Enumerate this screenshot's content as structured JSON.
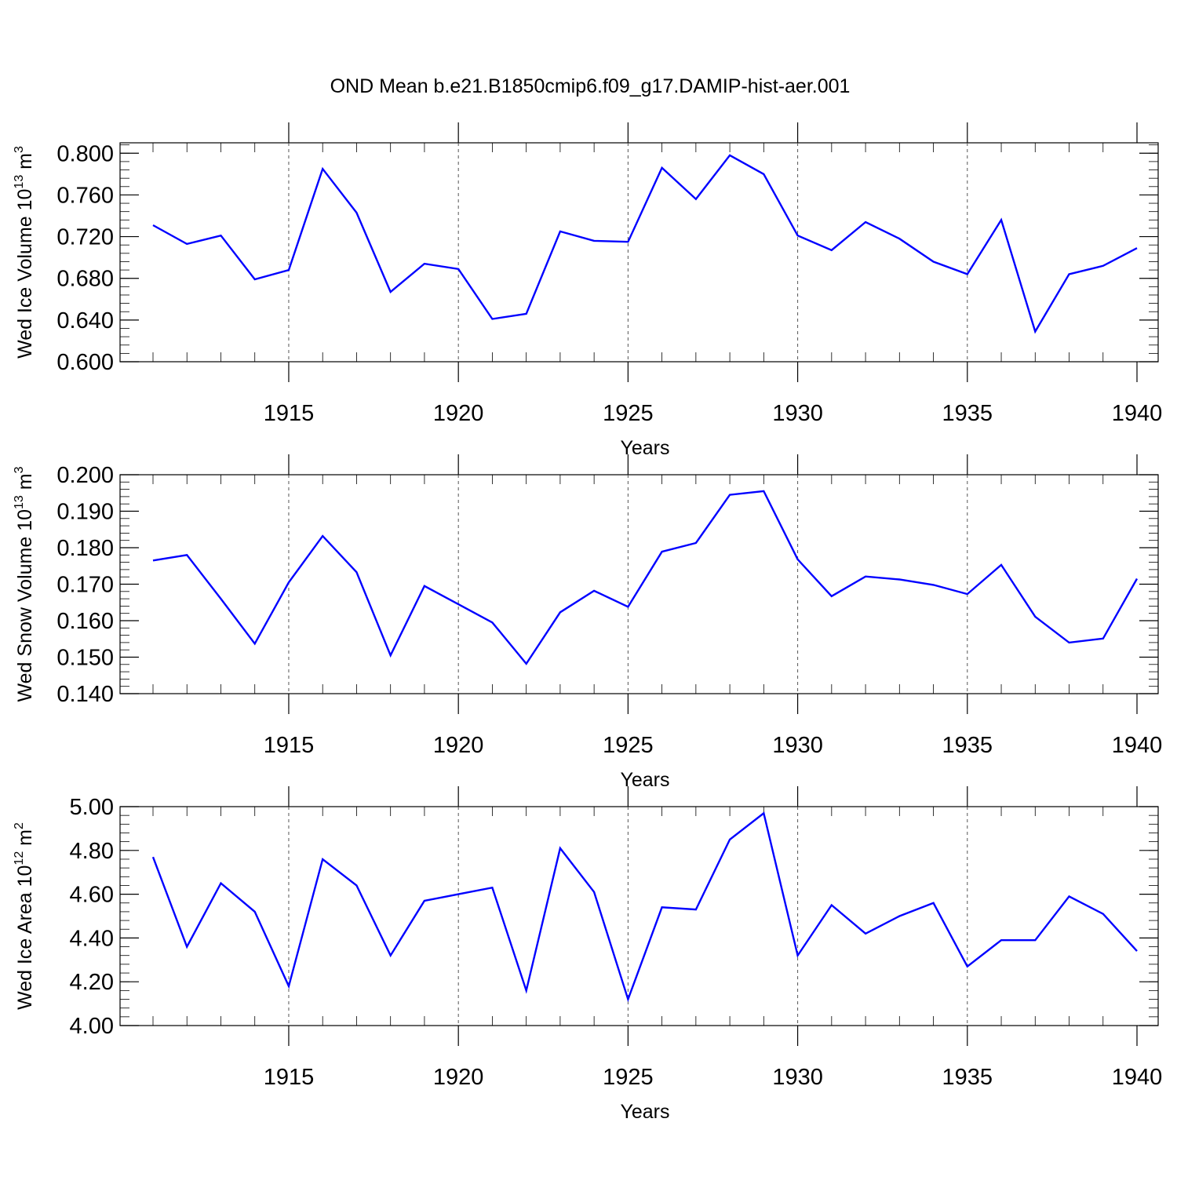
{
  "title": "OND Mean b.e21.B1850cmip6.f09_g17.DAMIP-hist-aer.001",
  "chart_data": [
    {
      "type": "line",
      "ylabel": "Wed Ice Volume 10",
      "ylabel_exp": "13",
      "ylabel_unit": " m",
      "ylabel_unit_exp": "3",
      "xlabel": "Years",
      "xlim": [
        1911,
        1940
      ],
      "ylim": [
        0.6,
        0.81
      ],
      "xticks": [
        1915,
        1920,
        1925,
        1930,
        1935,
        1940
      ],
      "yticks": [
        0.6,
        0.64,
        0.68,
        0.72,
        0.76,
        0.8
      ],
      "ytick_labels": [
        "0.600",
        "0.640",
        "0.680",
        "0.720",
        "0.760",
        "0.800"
      ],
      "y_minor_step": 0.008,
      "dashed_x": [
        1915,
        1920,
        1925,
        1930,
        1935
      ],
      "color": "#0000ff",
      "x": [
        1911,
        1912,
        1913,
        1914,
        1915,
        1916,
        1917,
        1918,
        1919,
        1920,
        1921,
        1922,
        1923,
        1924,
        1925,
        1926,
        1927,
        1928,
        1929,
        1930,
        1931,
        1932,
        1933,
        1934,
        1935,
        1936,
        1937,
        1938,
        1939,
        1940
      ],
      "values": [
        0.731,
        0.713,
        0.721,
        0.679,
        0.688,
        0.785,
        0.743,
        0.667,
        0.694,
        0.689,
        0.641,
        0.646,
        0.725,
        0.716,
        0.715,
        0.786,
        0.756,
        0.798,
        0.78,
        0.721,
        0.707,
        0.734,
        0.718,
        0.696,
        0.684,
        0.736,
        0.629,
        0.684,
        0.692,
        0.709
      ]
    },
    {
      "type": "line",
      "ylabel": "Wed Snow Volume 10",
      "ylabel_exp": "13",
      "ylabel_unit": " m",
      "ylabel_unit_exp": "3",
      "xlabel": "Years",
      "xlim": [
        1911,
        1940
      ],
      "ylim": [
        0.14,
        0.2
      ],
      "xticks": [
        1915,
        1920,
        1925,
        1930,
        1935,
        1940
      ],
      "yticks": [
        0.14,
        0.15,
        0.16,
        0.17,
        0.18,
        0.19,
        0.2
      ],
      "ytick_labels": [
        "0.140",
        "0.150",
        "0.160",
        "0.170",
        "0.180",
        "0.190",
        "0.200"
      ],
      "y_minor_step": 0.002,
      "dashed_x": [
        1915,
        1920,
        1925,
        1930,
        1935
      ],
      "color": "#0000ff",
      "x": [
        1911,
        1912,
        1913,
        1914,
        1915,
        1916,
        1917,
        1918,
        1919,
        1920,
        1921,
        1922,
        1923,
        1924,
        1925,
        1926,
        1927,
        1928,
        1929,
        1930,
        1931,
        1932,
        1933,
        1934,
        1935,
        1936,
        1937,
        1938,
        1939,
        1940
      ],
      "values": [
        0.1765,
        0.178,
        0.166,
        0.1537,
        0.1705,
        0.1832,
        0.1733,
        0.1505,
        0.1695,
        0.1645,
        0.1595,
        0.1482,
        0.1623,
        0.1682,
        0.1638,
        0.1789,
        0.1813,
        0.1945,
        0.1955,
        0.1768,
        0.1667,
        0.1721,
        0.1713,
        0.1698,
        0.1673,
        0.1753,
        0.1611,
        0.154,
        0.1551,
        0.1715
      ]
    },
    {
      "type": "line",
      "ylabel": "Wed Ice Area 10",
      "ylabel_exp": "12",
      "ylabel_unit": " m",
      "ylabel_unit_exp": "2",
      "xlabel": "Years",
      "xlim": [
        1911,
        1940
      ],
      "ylim": [
        4.0,
        5.0
      ],
      "xticks": [
        1915,
        1920,
        1925,
        1930,
        1935,
        1940
      ],
      "yticks": [
        4.0,
        4.2,
        4.4,
        4.6,
        4.8,
        5.0
      ],
      "ytick_labels": [
        "4.00",
        "4.20",
        "4.40",
        "4.60",
        "4.80",
        "5.00"
      ],
      "y_minor_step": 0.04,
      "dashed_x": [
        1915,
        1920,
        1925,
        1930,
        1935
      ],
      "color": "#0000ff",
      "x": [
        1911,
        1912,
        1913,
        1914,
        1915,
        1916,
        1917,
        1918,
        1919,
        1920,
        1921,
        1922,
        1923,
        1924,
        1925,
        1926,
        1927,
        1928,
        1929,
        1930,
        1931,
        1932,
        1933,
        1934,
        1935,
        1936,
        1937,
        1938,
        1939,
        1940
      ],
      "values": [
        4.77,
        4.36,
        4.65,
        4.52,
        4.18,
        4.76,
        4.64,
        4.32,
        4.57,
        4.6,
        4.63,
        4.16,
        4.81,
        4.61,
        4.12,
        4.54,
        4.53,
        4.85,
        4.97,
        4.32,
        4.55,
        4.42,
        4.5,
        4.56,
        4.27,
        4.39,
        4.39,
        4.59,
        4.51,
        4.34
      ]
    }
  ]
}
